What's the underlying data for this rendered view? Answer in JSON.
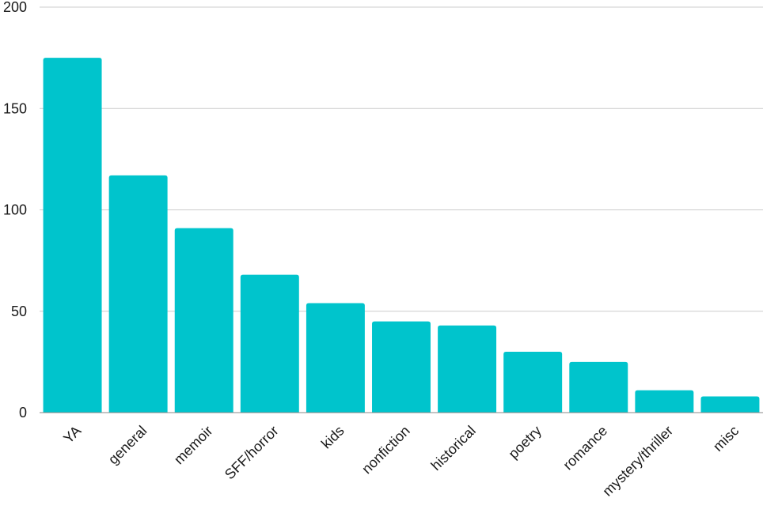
{
  "chart_data": {
    "type": "bar",
    "title": "",
    "xlabel": "",
    "ylabel": "",
    "categories": [
      "YA",
      "general",
      "memoir",
      "SFF/horror",
      "kids",
      "nonfiction",
      "historical",
      "poetry",
      "romance",
      "mystery/thriller",
      "misc"
    ],
    "values": [
      175,
      117,
      91,
      68,
      54,
      45,
      43,
      30,
      25,
      11,
      8
    ],
    "ylim": [
      0,
      200
    ],
    "yticks": [
      0,
      50,
      100,
      150,
      200
    ],
    "grid": true,
    "legend": "none",
    "bar_color": "#00C4CC"
  }
}
